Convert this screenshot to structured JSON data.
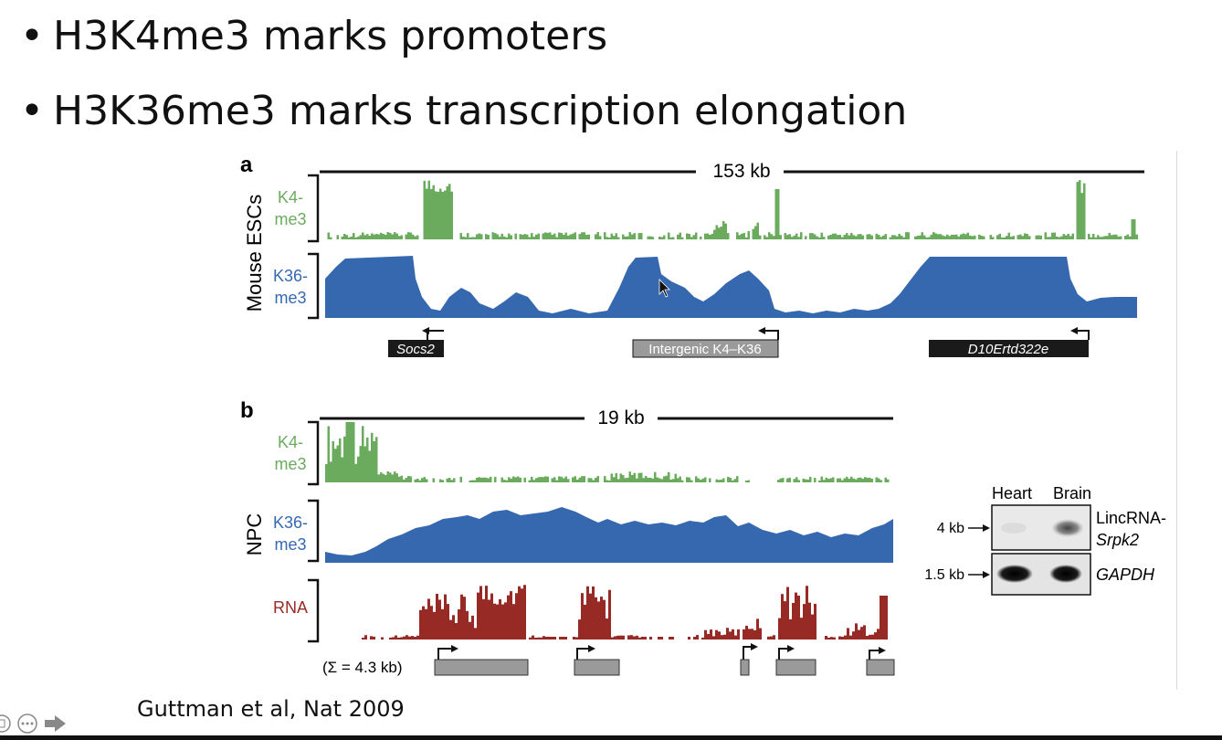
{
  "bullets": [
    "H3K4me3 marks promoters",
    "H3K36me3 marks transcription elongation"
  ],
  "bullet_symbol": "•",
  "citation": "Guttman et al, Nat 2009",
  "colors": {
    "k4me3": "#6aab5e",
    "k36me3": "#3668b0",
    "rna": "#982a26",
    "gene_box_dark": "#1a1a1a",
    "gene_box_gray": "#9a9a9a"
  },
  "panel_a": {
    "letter": "a",
    "scale_label": "153 kb",
    "group_label": "Mouse ESCs",
    "tracks": [
      {
        "line1": "K4-",
        "line2": "me3"
      },
      {
        "line1": "K36-",
        "line2": "me3"
      }
    ],
    "genes": [
      "Socs2",
      "Intergenic K4–K36",
      "D10Ertd322e"
    ]
  },
  "panel_b": {
    "letter": "b",
    "scale_label": "19 kb",
    "group_label": "NPC",
    "tracks": [
      {
        "line1": "K4-",
        "line2": "me3"
      },
      {
        "line1": "K36-",
        "line2": "me3"
      },
      {
        "line1": "RNA",
        "line2": ""
      }
    ],
    "sum_label": "(Σ = 4.3 kb)"
  },
  "blot": {
    "columns": [
      "Heart",
      "Brain"
    ],
    "rows": [
      {
        "size": "4 kb",
        "label1": "LincRNA-",
        "label2": "Srpk2"
      },
      {
        "size": "1.5 kb",
        "label1": "GAPDH",
        "label2": ""
      }
    ]
  },
  "nav_icons": [
    "slide-sorter-icon",
    "more-options-icon",
    "next-arrow-icon"
  ]
}
